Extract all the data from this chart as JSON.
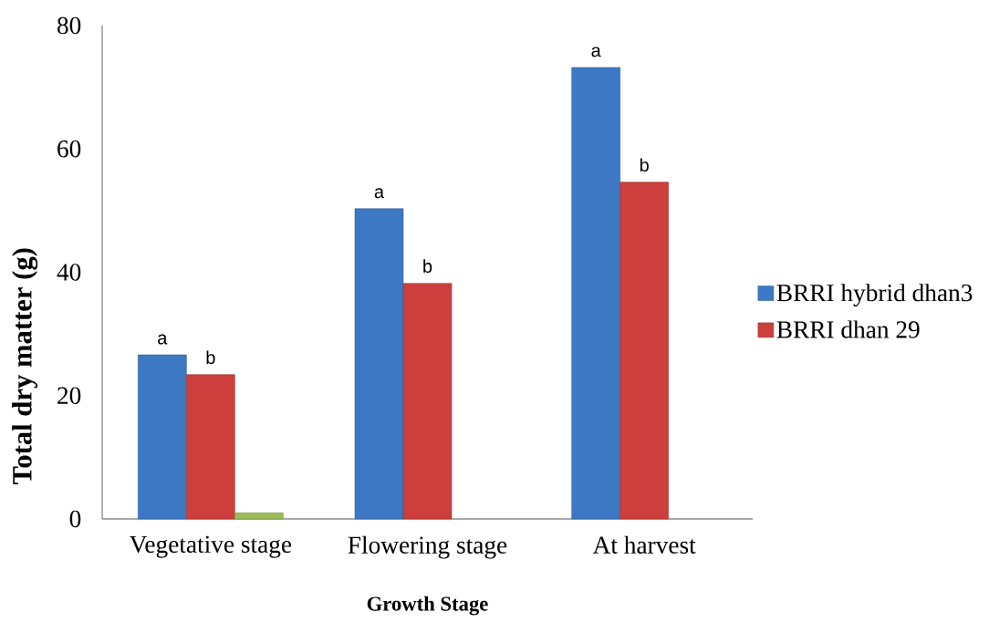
{
  "chart_data": {
    "type": "bar",
    "xlabel": "Growth Stage",
    "ylabel": "Total dry matter (g)",
    "categories": [
      "Vegetative stage",
      "Flowering stage",
      "At harvest"
    ],
    "series": [
      {
        "name": "BRRI hybrid dhan3",
        "color": "#3c78c3",
        "values": [
          26.6,
          50.3,
          73.2
        ],
        "value_labels": [
          "a",
          "a",
          "a"
        ]
      },
      {
        "name": "BRRI dhan 29",
        "color": "#cc3f3c",
        "values": [
          23.4,
          38.2,
          54.6
        ],
        "value_labels": [
          "b",
          "b",
          "b"
        ]
      },
      {
        "color": "#9bbb59",
        "values": [
          1,
          null,
          null
        ]
      }
    ],
    "ylim": [
      0,
      80
    ],
    "yticks": [
      0,
      20,
      40,
      60,
      80
    ],
    "legend": "right"
  }
}
